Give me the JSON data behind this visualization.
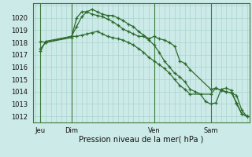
{
  "bg_color": "#cceae7",
  "grid_color": "#aad4d0",
  "line_color": "#2d6b2d",
  "xlabel": "Pression niveau de la mer( hPa )",
  "ylim": [
    1011.5,
    1021.2
  ],
  "yticks": [
    1012,
    1013,
    1014,
    1015,
    1016,
    1017,
    1018,
    1019,
    1020
  ],
  "xlim": [
    -1,
    83
  ],
  "day_positions": [
    2,
    14,
    46,
    68
  ],
  "day_labels": [
    "Jeu",
    "Dim",
    "Ven",
    "Sam"
  ],
  "vline_positions": [
    2,
    14,
    46,
    68
  ],
  "series1_x": [
    2,
    4,
    14,
    16,
    18,
    20,
    22,
    24,
    26,
    28,
    30,
    32,
    34,
    36,
    38,
    40,
    42,
    44,
    46,
    48,
    50,
    52,
    54,
    56,
    58,
    60,
    68,
    70,
    72,
    74,
    76,
    78,
    80,
    82
  ],
  "series1_y": [
    1017.3,
    1018.1,
    1018.5,
    1019.3,
    1020.1,
    1020.5,
    1020.7,
    1020.5,
    1020.3,
    1020.2,
    1020.2,
    1020.0,
    1019.8,
    1019.5,
    1019.3,
    1018.9,
    1018.6,
    1018.3,
    1018.5,
    1018.3,
    1018.2,
    1018.0,
    1017.7,
    1016.5,
    1016.3,
    1015.8,
    1014.2,
    1014.3,
    1014.1,
    1014.0,
    1013.9,
    1013.1,
    1012.2,
    1012.0
  ],
  "series2_x": [
    2,
    4,
    14,
    16,
    18,
    20,
    22,
    24,
    26,
    28,
    30,
    32,
    34,
    36,
    38,
    40,
    42,
    44,
    46,
    48,
    50,
    52,
    54,
    56,
    58,
    60,
    62,
    64,
    66,
    68,
    70,
    72,
    74,
    76,
    78,
    80,
    82
  ],
  "series2_y": [
    1018.1,
    1018.0,
    1018.4,
    1020.0,
    1020.5,
    1020.5,
    1020.3,
    1020.2,
    1020.1,
    1019.9,
    1019.7,
    1019.4,
    1019.1,
    1018.9,
    1018.7,
    1018.5,
    1018.5,
    1018.2,
    1017.8,
    1017.2,
    1016.5,
    1016.0,
    1015.5,
    1015.2,
    1014.8,
    1014.2,
    1014.0,
    1013.8,
    1013.2,
    1013.0,
    1013.1,
    1014.2,
    1014.3,
    1014.1,
    1013.0,
    1012.2,
    1012.0
  ],
  "series3_x": [
    2,
    4,
    14,
    16,
    18,
    20,
    22,
    24,
    26,
    28,
    30,
    32,
    34,
    36,
    38,
    40,
    42,
    44,
    46,
    48,
    50,
    52,
    54,
    56,
    58,
    60,
    68,
    70,
    72,
    74,
    76,
    78,
    80,
    82
  ],
  "series3_y": [
    1017.5,
    1018.0,
    1018.5,
    1018.5,
    1018.6,
    1018.7,
    1018.8,
    1018.9,
    1018.7,
    1018.5,
    1018.4,
    1018.3,
    1018.2,
    1018.0,
    1017.8,
    1017.5,
    1017.2,
    1016.8,
    1016.5,
    1016.2,
    1015.9,
    1015.5,
    1015.0,
    1014.5,
    1014.2,
    1013.8,
    1013.8,
    1014.3,
    1014.1,
    1014.0,
    1013.9,
    1013.7,
    1012.5,
    1012.0
  ]
}
